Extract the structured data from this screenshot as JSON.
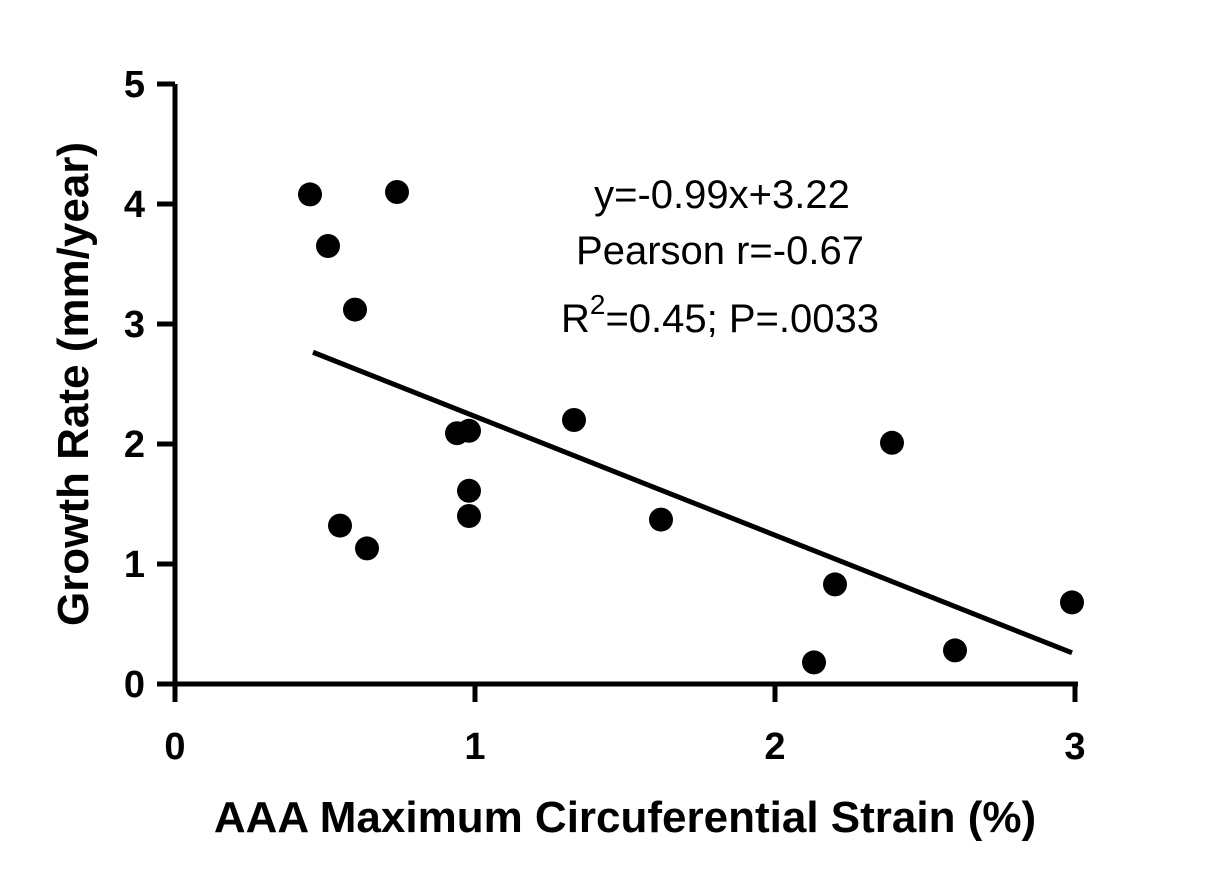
{
  "chart_data": {
    "type": "scatter",
    "xlabel": "AAA Maximum Circuferential Strain (%)",
    "ylabel": "Growth Rate (mm/year)",
    "xlim": [
      0,
      3
    ],
    "ylim": [
      0,
      5
    ],
    "xticks": [
      "0",
      "1",
      "2",
      "3"
    ],
    "yticks": [
      "0",
      "1",
      "2",
      "3",
      "4",
      "5"
    ],
    "grid": false,
    "marker_color": "#000000",
    "points": [
      {
        "x": 0.45,
        "y": 4.08
      },
      {
        "x": 0.74,
        "y": 4.1
      },
      {
        "x": 0.51,
        "y": 3.65
      },
      {
        "x": 0.6,
        "y": 3.12
      },
      {
        "x": 0.94,
        "y": 2.09
      },
      {
        "x": 0.98,
        "y": 2.11
      },
      {
        "x": 1.33,
        "y": 2.2
      },
      {
        "x": 0.98,
        "y": 1.61
      },
      {
        "x": 0.98,
        "y": 1.4
      },
      {
        "x": 0.55,
        "y": 1.32
      },
      {
        "x": 0.64,
        "y": 1.13
      },
      {
        "x": 1.62,
        "y": 1.37
      },
      {
        "x": 2.39,
        "y": 2.01
      },
      {
        "x": 2.2,
        "y": 0.83
      },
      {
        "x": 2.13,
        "y": 0.18
      },
      {
        "x": 2.6,
        "y": 0.28
      },
      {
        "x": 2.99,
        "y": 0.68
      }
    ],
    "fit_line": {
      "slope": -0.99,
      "intercept": 3.22,
      "x_start": 0.46,
      "x_end": 2.99
    },
    "annotations": {
      "equation": "y=-0.99x+3.22",
      "pearson": "Pearson r=-0.67",
      "r2_prefix": "R",
      "r2_sup": "2",
      "r2_rest": "=0.45; P=.0033"
    }
  }
}
